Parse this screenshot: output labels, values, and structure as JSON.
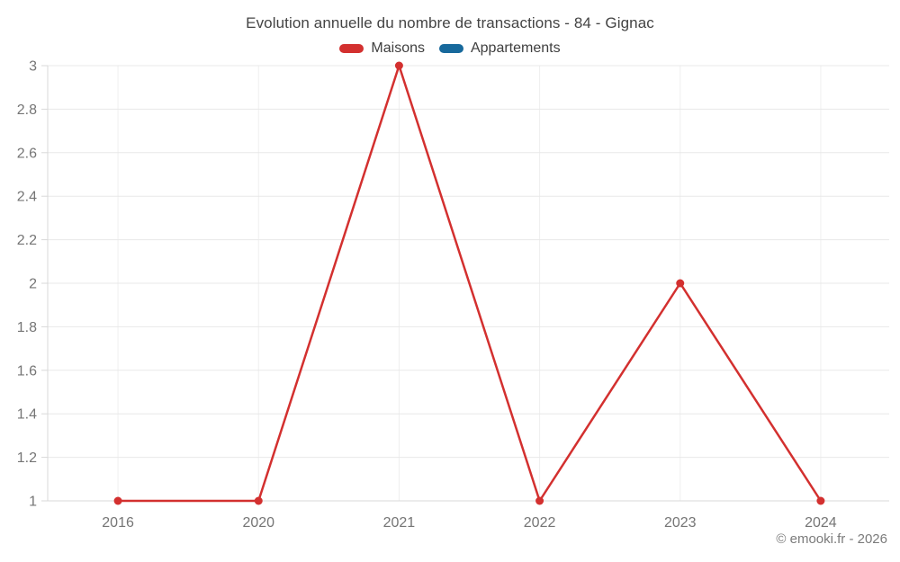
{
  "title": "Evolution annuelle du nombre de transactions - 84 - Gignac",
  "legend": [
    {
      "label": "Maisons",
      "color": "#d3302f"
    },
    {
      "label": "Appartements",
      "color": "#17699c"
    }
  ],
  "footer": "© emooki.fr - 2026",
  "chart_data": {
    "type": "line",
    "title": "Evolution annuelle du nombre de transactions - 84 - Gignac",
    "categories": [
      "2016",
      "2020",
      "2021",
      "2022",
      "2023",
      "2024"
    ],
    "series": [
      {
        "name": "Maisons",
        "color": "#d3302f",
        "values": [
          1,
          1,
          3,
          1,
          2,
          1
        ]
      },
      {
        "name": "Appartements",
        "color": "#17699c",
        "values": []
      }
    ],
    "xlabel": "",
    "ylabel": "",
    "ylim": [
      1,
      3
    ],
    "ytick_step": 0.2,
    "ytick_labels": [
      "1",
      "1.2",
      "1.4",
      "1.6",
      "1.8",
      "2",
      "2.2",
      "2.4",
      "2.6",
      "2.8",
      "3"
    ],
    "grid": true,
    "legend_position": "top",
    "marker": "circle"
  }
}
